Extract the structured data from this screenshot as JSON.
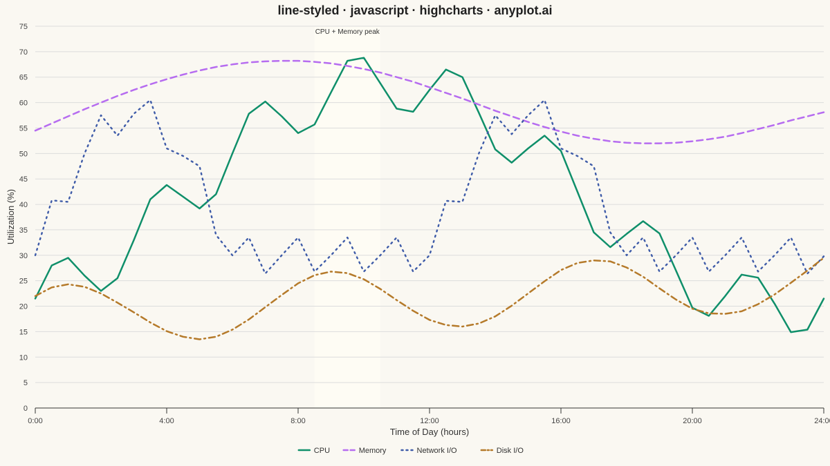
{
  "chart_data": {
    "type": "line",
    "title": "line-styled · javascript · highcharts · anyplot.ai",
    "xlabel": "Time of Day (hours)",
    "ylabel": "Utilization (%)",
    "xlim": [
      0,
      24
    ],
    "ylim": [
      0,
      75
    ],
    "x_ticks": [
      {
        "value": 0,
        "label": "0:00"
      },
      {
        "value": 4,
        "label": "4:00"
      },
      {
        "value": 8,
        "label": "8:00"
      },
      {
        "value": 12,
        "label": "12:00"
      },
      {
        "value": 16,
        "label": "16:00"
      },
      {
        "value": 20,
        "label": "20:00"
      },
      {
        "value": 24,
        "label": "24:00"
      }
    ],
    "y_ticks": [
      0,
      5,
      10,
      15,
      20,
      25,
      30,
      35,
      40,
      45,
      50,
      55,
      60,
      65,
      70,
      75
    ],
    "grid": true,
    "legend_position": "bottom-center",
    "plot_band": {
      "from": 8.5,
      "to": 10.5,
      "label": "CPU + Memory peak",
      "color": "#fefcf4"
    },
    "series": [
      {
        "name": "CPU",
        "color": "#0f8f6a",
        "dash": "solid",
        "x": [
          0,
          0.5,
          1,
          1.5,
          2,
          2.5,
          3,
          3.5,
          4,
          4.5,
          5,
          5.5,
          6,
          6.5,
          7,
          7.5,
          8,
          8.5,
          9,
          9.5,
          10,
          10.5,
          11,
          11.5,
          12,
          12.5,
          13,
          13.5,
          14,
          14.5,
          15,
          15.5,
          16,
          16.5,
          17,
          17.5,
          18,
          18.5,
          19,
          19.5,
          20,
          20.5,
          21,
          21.5,
          22,
          22.5,
          23,
          23.5,
          24
        ],
        "y": [
          21.5,
          28,
          29.5,
          26,
          23,
          25.5,
          33,
          41,
          43.8,
          41.5,
          39.2,
          42,
          50,
          57.8,
          60.2,
          57.3,
          54,
          55.7,
          62,
          68.2,
          68.8,
          63.8,
          58.8,
          58.2,
          62.5,
          66.5,
          65,
          58,
          50.8,
          48.2,
          51,
          53.5,
          50.5,
          42.5,
          34.5,
          31.6,
          34.2,
          36.7,
          34.3,
          27,
          19.7,
          18.1,
          22,
          26.2,
          25.6,
          20.5,
          14.9,
          15.4,
          21.5
        ]
      },
      {
        "name": "Memory",
        "color": "#b66cf0",
        "dash": "dash",
        "x": [
          0,
          0.5,
          1,
          1.5,
          2,
          2.5,
          3,
          3.5,
          4,
          4.5,
          5,
          5.5,
          6,
          6.5,
          7,
          7.5,
          8,
          8.5,
          9,
          9.5,
          10,
          10.5,
          11,
          11.5,
          12,
          12.5,
          13,
          13.5,
          14,
          14.5,
          15,
          15.5,
          16,
          16.5,
          17,
          17.5,
          18,
          18.5,
          19,
          19.5,
          20,
          20.5,
          21,
          21.5,
          22,
          22.5,
          23,
          23.5,
          24
        ],
        "y": [
          54.5,
          55.9,
          57.3,
          58.7,
          60,
          61.3,
          62.5,
          63.6,
          64.6,
          65.5,
          66.3,
          67,
          67.5,
          67.9,
          68.1,
          68.2,
          68.2,
          68,
          67.7,
          67.2,
          66.6,
          65.9,
          65,
          64.1,
          63,
          61.9,
          60.8,
          59.6,
          58.4,
          57.3,
          56.2,
          55.2,
          54.3,
          53.5,
          52.9,
          52.4,
          52.1,
          52,
          52,
          52.1,
          52.4,
          52.8,
          53.3,
          54,
          54.8,
          55.6,
          56.5,
          57.3,
          58.1
        ]
      },
      {
        "name": "Network I/O",
        "color": "#3e5ba8",
        "dash": "dot",
        "x": [
          0,
          0.5,
          1,
          1.5,
          2,
          2.5,
          3,
          3.5,
          4,
          4.5,
          5,
          5.5,
          6,
          6.5,
          7,
          7.5,
          8,
          8.5,
          9,
          9.5,
          10,
          10.5,
          11,
          11.5,
          12,
          12.5,
          13,
          13.5,
          14,
          14.5,
          15,
          15.5,
          16,
          16.5,
          17,
          17.5,
          18,
          18.5,
          19,
          19.5,
          20,
          20.5,
          21,
          21.5,
          22,
          22.5,
          23,
          23.5,
          24
        ],
        "y": [
          30,
          40.8,
          40.5,
          50,
          57.5,
          53.5,
          57.8,
          60.5,
          51,
          49.5,
          47.5,
          34,
          30,
          33.5,
          26.4,
          30,
          33.5,
          26.8,
          30,
          33.5,
          26.8,
          30,
          33.5,
          26.8,
          30,
          40.7,
          40.5,
          50,
          57.5,
          53.8,
          57.5,
          60.5,
          51,
          49.5,
          47.5,
          34.5,
          30,
          33.5,
          26.8,
          30,
          33.5,
          26.8,
          30,
          33.5,
          26.8,
          30,
          33.5,
          26.4,
          29.8
        ]
      },
      {
        "name": "Disk I/O",
        "color": "#b57a2a",
        "dash": "dashdot",
        "x": [
          0,
          0.5,
          1,
          1.5,
          2,
          2.5,
          3,
          3.5,
          4,
          4.5,
          5,
          5.5,
          6,
          6.5,
          7,
          7.5,
          8,
          8.5,
          9,
          9.5,
          10,
          10.5,
          11,
          11.5,
          12,
          12.5,
          13,
          13.5,
          14,
          14.5,
          15,
          15.5,
          16,
          16.5,
          17,
          17.5,
          18,
          18.5,
          19,
          19.5,
          20,
          20.5,
          21,
          21.5,
          22,
          22.5,
          23,
          23.5,
          24
        ],
        "y": [
          22,
          23.7,
          24.3,
          23.8,
          22.5,
          20.7,
          18.8,
          16.8,
          15.1,
          14,
          13.5,
          14,
          15.4,
          17.4,
          19.8,
          22.2,
          24.5,
          26.1,
          26.8,
          26.5,
          25.3,
          23.4,
          21.2,
          19.1,
          17.3,
          16.3,
          16,
          16.6,
          18,
          20.1,
          22.5,
          24.9,
          27.1,
          28.5,
          29,
          28.8,
          27.6,
          25.8,
          23.5,
          21.3,
          19.5,
          18.6,
          18.5,
          19,
          20.4,
          22.3,
          24.6,
          27,
          29.5
        ]
      }
    ]
  }
}
